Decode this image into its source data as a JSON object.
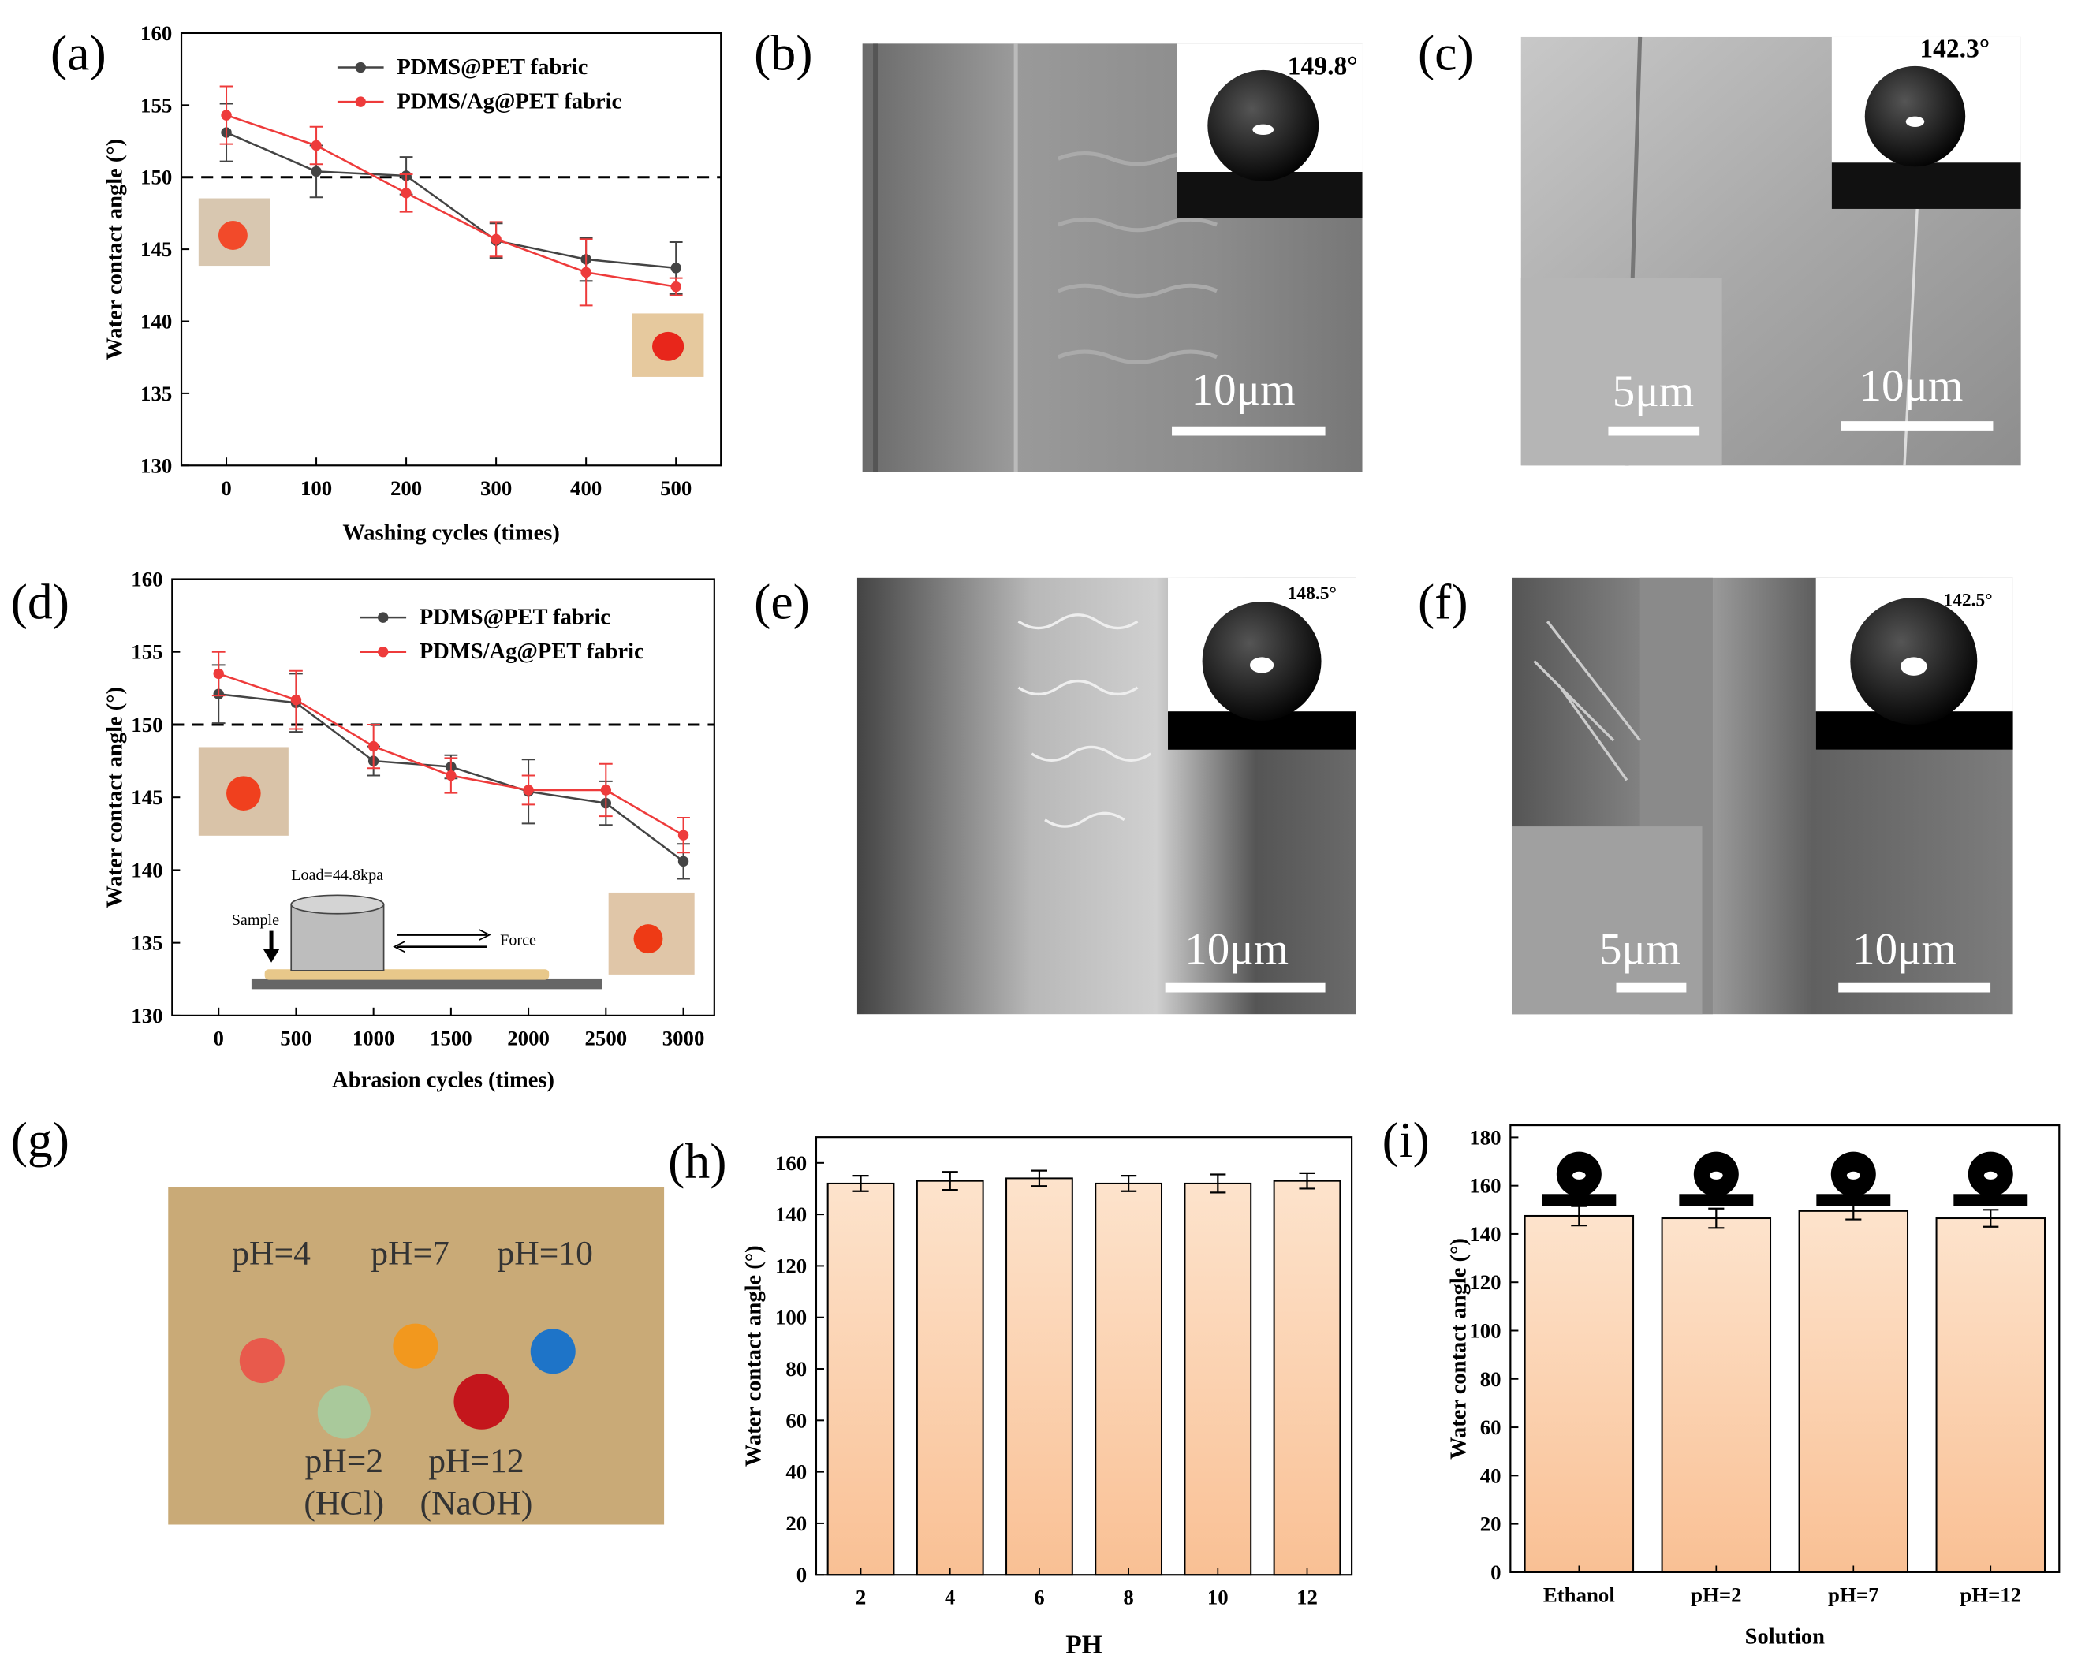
{
  "panel_labels": [
    "(a)",
    "(b)",
    "(c)",
    "(d)",
    "(e)",
    "(f)",
    "(g)",
    "(h)",
    "(i)"
  ],
  "chart_data": [
    {
      "type": "line",
      "xlabel": "Washing cycles (times)",
      "ylabel": "Water contact angle (°)",
      "x": [
        0,
        100,
        200,
        300,
        400,
        500
      ],
      "xlim": [
        -50,
        550
      ],
      "xticks": [
        0,
        100,
        200,
        300,
        400,
        500
      ],
      "ylim": [
        130,
        160
      ],
      "yticks": [
        130,
        135,
        140,
        145,
        150,
        155,
        160
      ],
      "reference_line": 150,
      "series": [
        {
          "name": "PDMS@PET fabric",
          "color": "#444444",
          "values": [
            153.1,
            150.4,
            150.1,
            145.6,
            144.3,
            143.7
          ],
          "errors": [
            2,
            1.8,
            1.3,
            1.2,
            1.5,
            1.8
          ]
        },
        {
          "name": "PDMS/Ag@PET fabric",
          "color": "#ee3b3b",
          "values": [
            154.3,
            152.2,
            148.9,
            145.7,
            143.4,
            142.4
          ],
          "errors": [
            2,
            1.3,
            1.3,
            1.2,
            2.3,
            0.6
          ]
        }
      ]
    },
    {
      "type": "line",
      "xlabel": "Abrasion cycles (times)",
      "ylabel": "Water contact angle (°)",
      "x": [
        0,
        500,
        1000,
        1500,
        2000,
        2500,
        3000
      ],
      "xlim": [
        -300,
        3200
      ],
      "xticks": [
        0,
        500,
        1000,
        1500,
        2000,
        2500,
        3000
      ],
      "ylim": [
        130,
        160
      ],
      "yticks": [
        130,
        135,
        140,
        145,
        150,
        155,
        160
      ],
      "reference_line": 150,
      "series": [
        {
          "name": "PDMS@PET fabric",
          "color": "#444444",
          "values": [
            152.1,
            151.5,
            147.5,
            147.1,
            145.4,
            144.6,
            140.6
          ],
          "errors": [
            2,
            2,
            1,
            0.8,
            2.2,
            1.5,
            1.2
          ]
        },
        {
          "name": "PDMS/Ag@PET fabric",
          "color": "#ee3b3b",
          "values": [
            153.5,
            151.7,
            148.5,
            146.5,
            145.5,
            145.5,
            142.4
          ],
          "errors": [
            1.5,
            2,
            1.5,
            1.2,
            1,
            1.8,
            1.2
          ]
        }
      ],
      "annotations": [
        "Load=44.8kpa",
        "Sample",
        "Force"
      ]
    },
    {
      "type": "bar",
      "xlabel": "PH",
      "ylabel": "Water contact angle (°)",
      "categories": [
        "2",
        "4",
        "6",
        "8",
        "10",
        "12"
      ],
      "values": [
        152,
        153,
        154,
        152,
        152,
        153
      ],
      "errors": [
        3,
        3.5,
        3,
        3,
        3.5,
        3
      ],
      "ylim": [
        0,
        170
      ],
      "yticks": [
        0,
        20,
        40,
        60,
        80,
        100,
        120,
        140,
        160
      ]
    },
    {
      "type": "bar",
      "xlabel": "Solution",
      "ylabel": "Water contact angle (°)",
      "categories": [
        "Ethanol",
        "pH=2",
        "pH=7",
        "pH=12"
      ],
      "values": [
        147.5,
        146.5,
        149.5,
        146.5
      ],
      "errors": [
        4,
        4,
        3.5,
        3.5
      ],
      "ylim": [
        0,
        185
      ],
      "yticks": [
        0,
        20,
        40,
        60,
        80,
        100,
        120,
        140,
        160,
        180
      ]
    }
  ],
  "micrographs": [
    {
      "contact_angle": "149.8°",
      "scale_bars": [
        "10μm"
      ]
    },
    {
      "contact_angle": "142.3°",
      "scale_bars": [
        "5μm",
        "10μm"
      ]
    },
    {
      "contact_angle": "148.5°",
      "scale_bars": [
        "10μm"
      ]
    },
    {
      "contact_angle": "142.5°",
      "scale_bars": [
        "5μm",
        "10μm"
      ]
    }
  ],
  "photo": {
    "labels": [
      "pH=4",
      "pH=7",
      "pH=10",
      "pH=2",
      "(HCl)",
      "pH=12",
      "(NaOH)"
    ]
  }
}
